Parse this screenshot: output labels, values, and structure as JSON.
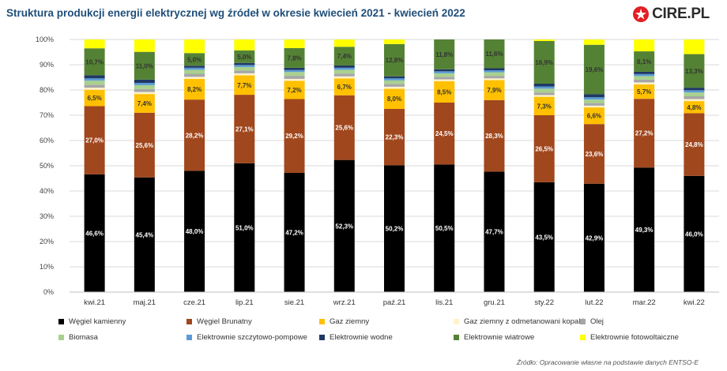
{
  "header": {
    "title": "Struktura produkcji energii elektrycznej wg źródeł w okresie kwiecień 2021 - kwiecień 2022",
    "logo_text": "CIRE.PL",
    "logo_icon": "cire-star-icon",
    "source": "Źródło: Opracowanie własne na podstawie danych ENTSO-E"
  },
  "chart_data": {
    "type": "bar",
    "stacked": true,
    "title": "Struktura produkcji energii elektrycznej wg źródeł w okresie kwiecień 2021 - kwiecień 2022",
    "xlabel": "",
    "ylabel": "",
    "ylim": [
      0,
      100
    ],
    "yticks": [
      "0%",
      "10%",
      "20%",
      "30%",
      "40%",
      "50%",
      "60%",
      "70%",
      "80%",
      "90%",
      "100%"
    ],
    "grid": true,
    "legend_position": "bottom",
    "categories": [
      "kwi.21",
      "maj.21",
      "cze.21",
      "lip.21",
      "sie.21",
      "wrz.21",
      "paź.21",
      "lis.21",
      "gru.21",
      "sty.22",
      "lut.22",
      "mar.22",
      "kwi.22"
    ],
    "series": [
      {
        "name": "Węgiel kamienny",
        "color": "#000000",
        "label_color": "#ffffff",
        "values": [
          46.6,
          45.4,
          48.0,
          51.0,
          47.2,
          52.3,
          50.2,
          50.5,
          47.7,
          43.5,
          42.9,
          49.3,
          46.0
        ],
        "labels": [
          "46,6%",
          "45,4%",
          "48,0%",
          "51,0%",
          "47,2%",
          "52,3%",
          "50,2%",
          "50,5%",
          "47,7%",
          "43,5%",
          "42,9%",
          "49,3%",
          "46,0%"
        ]
      },
      {
        "name": "Węgiel Brunatny",
        "color": "#a0471d",
        "label_color": "#ffffff",
        "values": [
          27.0,
          25.6,
          28.2,
          27.1,
          29.2,
          25.6,
          22.3,
          24.5,
          28.3,
          26.5,
          23.6,
          27.2,
          24.8
        ],
        "labels": [
          "27,0%",
          "25,6%",
          "28,2%",
          "27,1%",
          "29,2%",
          "25,6%",
          "22,3%",
          "24,5%",
          "28,3%",
          "26,5%",
          "23,6%",
          "27,2%",
          "24,8%"
        ]
      },
      {
        "name": "Gaz ziemny",
        "color": "#ffc000",
        "label_color": "#333333",
        "values": [
          6.5,
          7.4,
          8.2,
          7.7,
          7.2,
          6.7,
          8.0,
          8.5,
          7.9,
          7.3,
          6.6,
          5.7,
          4.8
        ],
        "labels": [
          "6,5%",
          "7,4%",
          "8,2%",
          "7,7%",
          "7,2%",
          "6,7%",
          "8,0%",
          "8,5%",
          "7,9%",
          "7,3%",
          "6,6%",
          "5,7%",
          "4,8%"
        ]
      },
      {
        "name": "Gaz ziemny z odmetanowani kopalń",
        "color": "#fff2cc",
        "values": [
          0.8,
          0.8,
          0.8,
          0.8,
          0.8,
          0.8,
          0.8,
          0.7,
          0.7,
          0.7,
          0.7,
          0.8,
          0.8
        ]
      },
      {
        "name": "Olej",
        "color": "#a6a6a6",
        "values": [
          1.2,
          1.2,
          1.2,
          1.1,
          1.2,
          1.1,
          1.1,
          1.0,
          1.0,
          1.0,
          1.0,
          1.1,
          1.1
        ]
      },
      {
        "name": "Biomasa",
        "color": "#a9d18e",
        "values": [
          1.6,
          1.5,
          1.6,
          1.4,
          1.5,
          1.5,
          1.4,
          1.4,
          1.4,
          1.5,
          1.4,
          1.4,
          1.5
        ]
      },
      {
        "name": "Elektrownie szczytowo-pompowe",
        "color": "#5b9bd5",
        "values": [
          0.9,
          0.9,
          0.8,
          0.8,
          0.8,
          0.8,
          0.8,
          0.8,
          0.8,
          0.9,
          0.9,
          0.8,
          0.9
        ]
      },
      {
        "name": "Elektrownie wodne",
        "color": "#1f3864",
        "values": [
          1.2,
          1.3,
          0.8,
          0.8,
          0.9,
          0.9,
          0.8,
          0.8,
          0.8,
          1.1,
          1.2,
          0.9,
          1.0
        ]
      },
      {
        "name": "Elektrownie wiatrowe",
        "color": "#548235",
        "label_color": "#333333",
        "values": [
          10.7,
          11.0,
          5.0,
          5.0,
          7.8,
          7.4,
          12.8,
          11.8,
          11.6,
          16.9,
          19.6,
          8.1,
          13.3
        ],
        "labels": [
          "10,7%",
          "11,0%",
          "5,0%",
          "5,0%",
          "7,8%",
          "7,4%",
          "12,8%",
          "11,8%",
          "11,6%",
          "16,9%",
          "19,6%",
          "8,1%",
          "13,3%"
        ]
      },
      {
        "name": "Elektrownie fotowoltaiczne",
        "color": "#ffff00",
        "values": [
          3.5,
          4.9,
          5.4,
          4.3,
          3.4,
          2.9,
          1.8,
          0.0,
          0.1,
          0.6,
          2.1,
          4.7,
          5.8
        ]
      }
    ]
  }
}
